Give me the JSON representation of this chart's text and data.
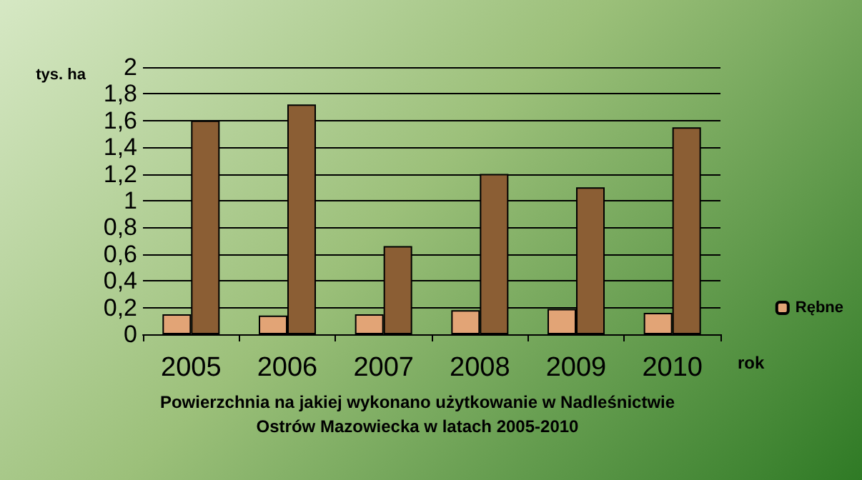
{
  "chart_data": {
    "type": "bar",
    "title": "Powierzchnia na jakiej wykonano użytkowanie w Nadleśnictwie\nOstrów Mazowiecka w latach 2005-2010",
    "xlabel": "rok",
    "ylabel": "tys. ha",
    "categories": [
      "2005",
      "2006",
      "2007",
      "2008",
      "2009",
      "2010"
    ],
    "series": [
      {
        "name": "Rębne",
        "color": "#e2a476",
        "values": [
          0.15,
          0.14,
          0.15,
          0.18,
          0.19,
          0.16
        ]
      },
      {
        "color": "#8b5e34",
        "values": [
          1.6,
          1.72,
          0.66,
          1.2,
          1.1,
          1.55
        ]
      }
    ],
    "ylim": [
      0,
      2
    ],
    "yticks": [
      0,
      {
        "value": 0.2,
        "label": "0,2"
      },
      {
        "value": 0.4,
        "label": "0,4"
      },
      {
        "value": 0.6,
        "label": "0,6"
      },
      {
        "value": 0.8,
        "label": "0,8"
      },
      1,
      {
        "value": 1.2,
        "label": "1,2"
      },
      {
        "value": 1.4,
        "label": "1,4"
      },
      {
        "value": 1.6,
        "label": "1,6"
      },
      {
        "value": 1.8,
        "label": "1,8"
      },
      2
    ],
    "grid": "y",
    "legend": "right"
  }
}
